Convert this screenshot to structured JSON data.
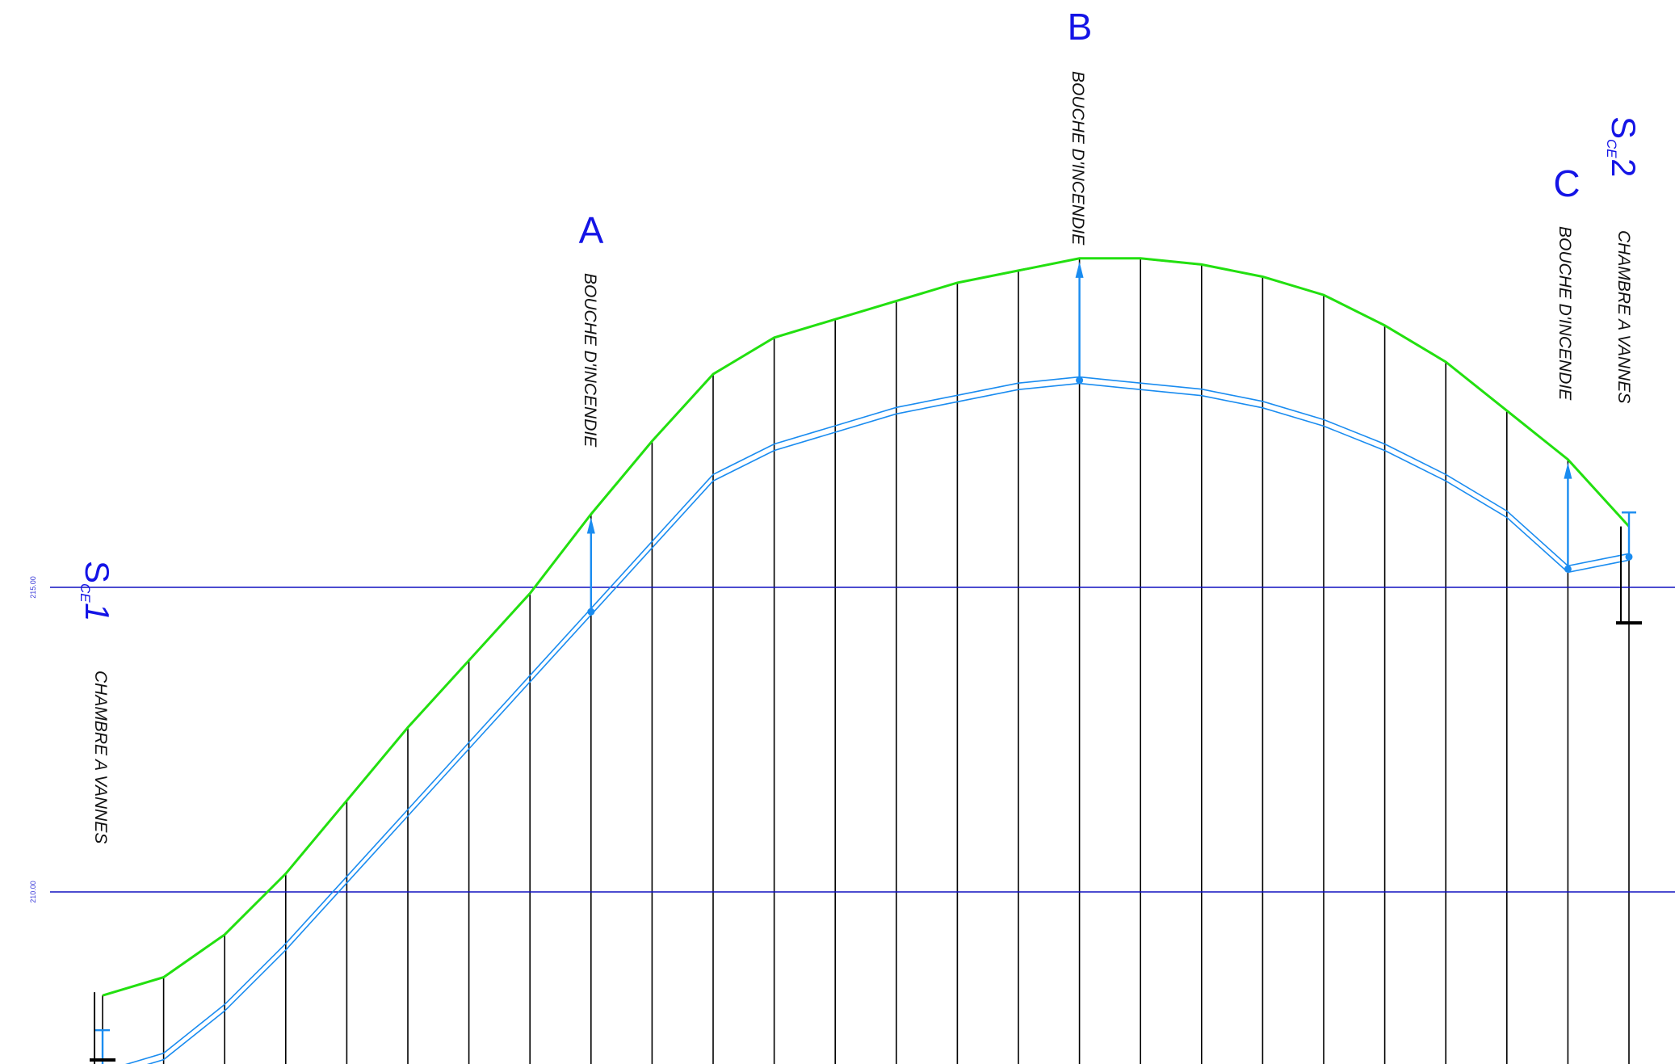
{
  "profile": {
    "stations": 26,
    "elevation_axis": {
      "reference_lines": [
        {
          "value": 215,
          "label": "215.00"
        },
        {
          "value": 210,
          "label": "210.00"
        }
      ],
      "range": [
        205.5,
        223.5
      ]
    },
    "ground_red": [
      208.3,
      208.6,
      209.3,
      210.3,
      211.5,
      212.7,
      213.8,
      214.9,
      216.2,
      217.4,
      218.5,
      219.1,
      219.4,
      219.7,
      220.0,
      220.2,
      220.4,
      220.4,
      220.3,
      220.1,
      219.8,
      219.3,
      218.7,
      217.9,
      217.1,
      216.0
    ],
    "ground_green": [
      208.3,
      208.6,
      209.3,
      210.3,
      211.5,
      212.7,
      213.8,
      214.9,
      216.2,
      217.4,
      218.5,
      219.1,
      219.4,
      219.7,
      220.0,
      220.2,
      220.4,
      220.4,
      220.3,
      220.1,
      219.8,
      219.3,
      218.7,
      217.9,
      217.1,
      216.0
    ],
    "pipe": [
      207.0,
      207.3,
      208.1,
      209.1,
      210.2,
      211.3,
      212.4,
      213.5,
      214.6,
      215.7,
      216.8,
      217.3,
      217.6,
      217.9,
      218.1,
      218.3,
      218.4,
      218.3,
      218.2,
      218.0,
      217.7,
      217.3,
      216.8,
      216.2,
      215.3,
      215.5
    ]
  },
  "points": {
    "s1": {
      "letter": "S",
      "sub": "CE",
      "num": "1",
      "label": "CHAMBRE A VANNES"
    },
    "a": {
      "letter": "A",
      "label": "BOUCHE D'INCENDIE"
    },
    "b": {
      "letter": "B",
      "label": "BOUCHE D'INCENDIE"
    },
    "c": {
      "letter": "C",
      "label": "BOUCHE D'INCENDIE"
    },
    "s2": {
      "letter": "S",
      "sub": "CE",
      "num": "2",
      "label": "CHAMBRE A VANNES"
    }
  },
  "colors": {
    "ground_red": "#e00000",
    "ground_green": "#22e010",
    "pipe": "#1a8cf0",
    "reference_line": "#1010c0",
    "labels": "#1414e6",
    "verticals": "#000000"
  }
}
